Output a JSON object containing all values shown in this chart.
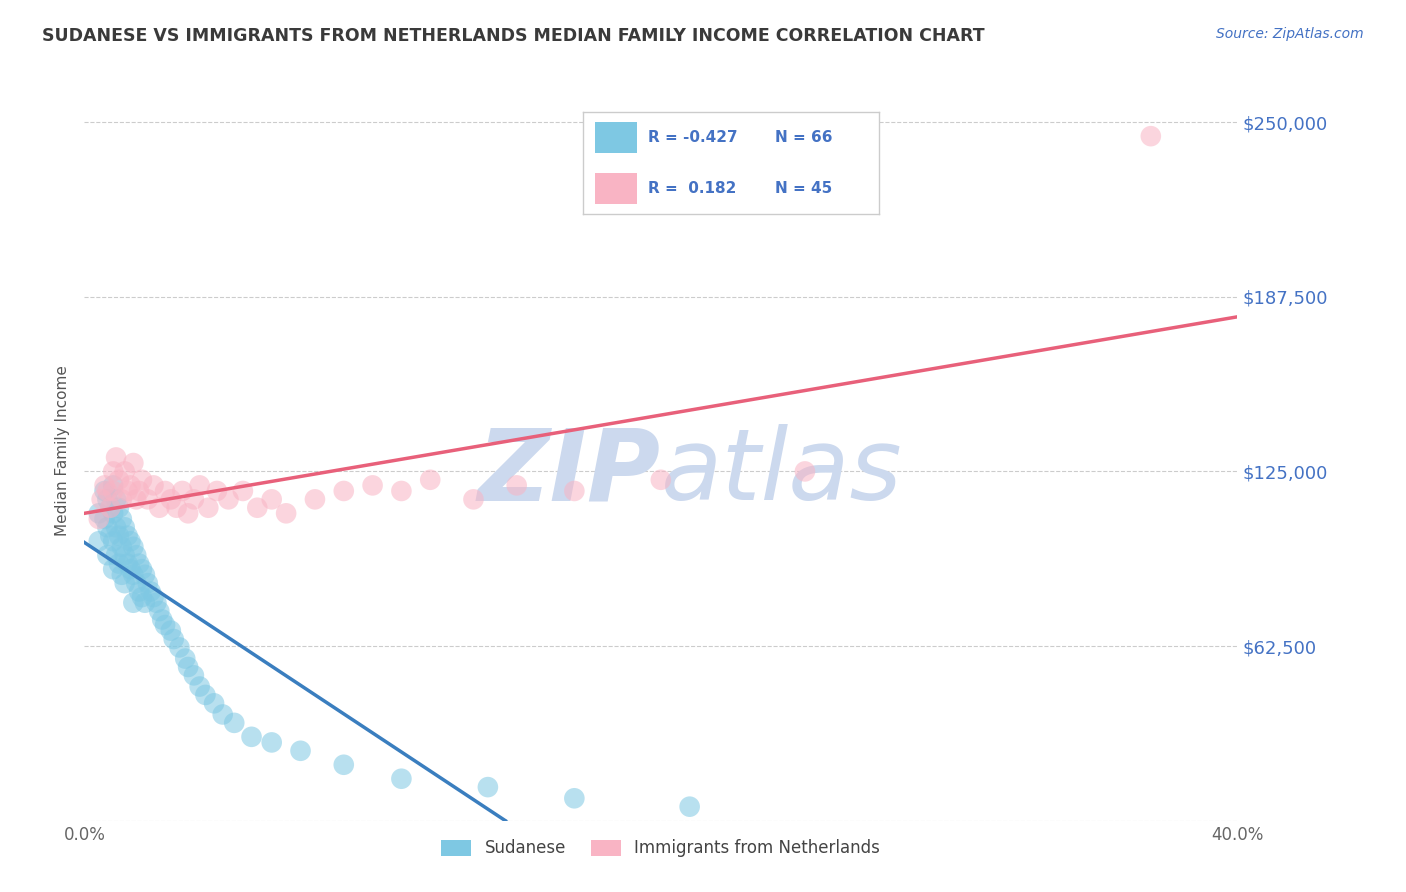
{
  "title": "SUDANESE VS IMMIGRANTS FROM NETHERLANDS MEDIAN FAMILY INCOME CORRELATION CHART",
  "source_text": "Source: ZipAtlas.com",
  "ylabel": "Median Family Income",
  "xlim": [
    0.0,
    0.4
  ],
  "ylim": [
    0,
    265000
  ],
  "yticks": [
    0,
    62500,
    125000,
    187500,
    250000
  ],
  "ytick_labels": [
    "",
    "$62,500",
    "$125,000",
    "$187,500",
    "$250,000"
  ],
  "xticks": [
    0.0,
    0.4
  ],
  "xtick_labels": [
    "0.0%",
    "40.0%"
  ],
  "R_sudanese": -0.427,
  "N_sudanese": 66,
  "R_netherlands": 0.182,
  "N_netherlands": 45,
  "blue_color": "#7ec8e3",
  "pink_color": "#f9b4c4",
  "trend_blue": "#3a7ebf",
  "trend_pink": "#e8607a",
  "axis_color": "#4472C4",
  "title_color": "#3a3a3a",
  "background_color": "#ffffff",
  "watermark_color": "#ccd9ee",
  "sudanese_x": [
    0.005,
    0.005,
    0.007,
    0.007,
    0.008,
    0.008,
    0.008,
    0.009,
    0.009,
    0.01,
    0.01,
    0.01,
    0.01,
    0.011,
    0.011,
    0.011,
    0.012,
    0.012,
    0.012,
    0.013,
    0.013,
    0.013,
    0.014,
    0.014,
    0.014,
    0.015,
    0.015,
    0.016,
    0.016,
    0.017,
    0.017,
    0.017,
    0.018,
    0.018,
    0.019,
    0.019,
    0.02,
    0.02,
    0.021,
    0.021,
    0.022,
    0.023,
    0.024,
    0.025,
    0.026,
    0.027,
    0.028,
    0.03,
    0.031,
    0.033,
    0.035,
    0.036,
    0.038,
    0.04,
    0.042,
    0.045,
    0.048,
    0.052,
    0.058,
    0.065,
    0.075,
    0.09,
    0.11,
    0.14,
    0.17,
    0.21
  ],
  "sudanese_y": [
    110000,
    100000,
    118000,
    108000,
    115000,
    105000,
    95000,
    112000,
    102000,
    120000,
    110000,
    100000,
    90000,
    115000,
    105000,
    95000,
    112000,
    102000,
    92000,
    108000,
    98000,
    88000,
    105000,
    95000,
    85000,
    102000,
    92000,
    100000,
    90000,
    98000,
    88000,
    78000,
    95000,
    85000,
    92000,
    82000,
    90000,
    80000,
    88000,
    78000,
    85000,
    82000,
    80000,
    78000,
    75000,
    72000,
    70000,
    68000,
    65000,
    62000,
    58000,
    55000,
    52000,
    48000,
    45000,
    42000,
    38000,
    35000,
    30000,
    28000,
    25000,
    20000,
    15000,
    12000,
    8000,
    5000
  ],
  "netherlands_x": [
    0.005,
    0.006,
    0.007,
    0.008,
    0.009,
    0.01,
    0.01,
    0.011,
    0.012,
    0.013,
    0.014,
    0.015,
    0.016,
    0.017,
    0.018,
    0.019,
    0.02,
    0.022,
    0.024,
    0.026,
    0.028,
    0.03,
    0.032,
    0.034,
    0.036,
    0.038,
    0.04,
    0.043,
    0.046,
    0.05,
    0.055,
    0.06,
    0.065,
    0.07,
    0.08,
    0.09,
    0.1,
    0.11,
    0.12,
    0.135,
    0.15,
    0.17,
    0.2,
    0.25,
    0.37
  ],
  "netherlands_y": [
    108000,
    115000,
    120000,
    118000,
    112000,
    125000,
    118000,
    130000,
    122000,
    115000,
    125000,
    118000,
    120000,
    128000,
    115000,
    118000,
    122000,
    115000,
    120000,
    112000,
    118000,
    115000,
    112000,
    118000,
    110000,
    115000,
    120000,
    112000,
    118000,
    115000,
    118000,
    112000,
    115000,
    110000,
    115000,
    118000,
    120000,
    118000,
    122000,
    115000,
    120000,
    118000,
    122000,
    125000,
    245000
  ]
}
